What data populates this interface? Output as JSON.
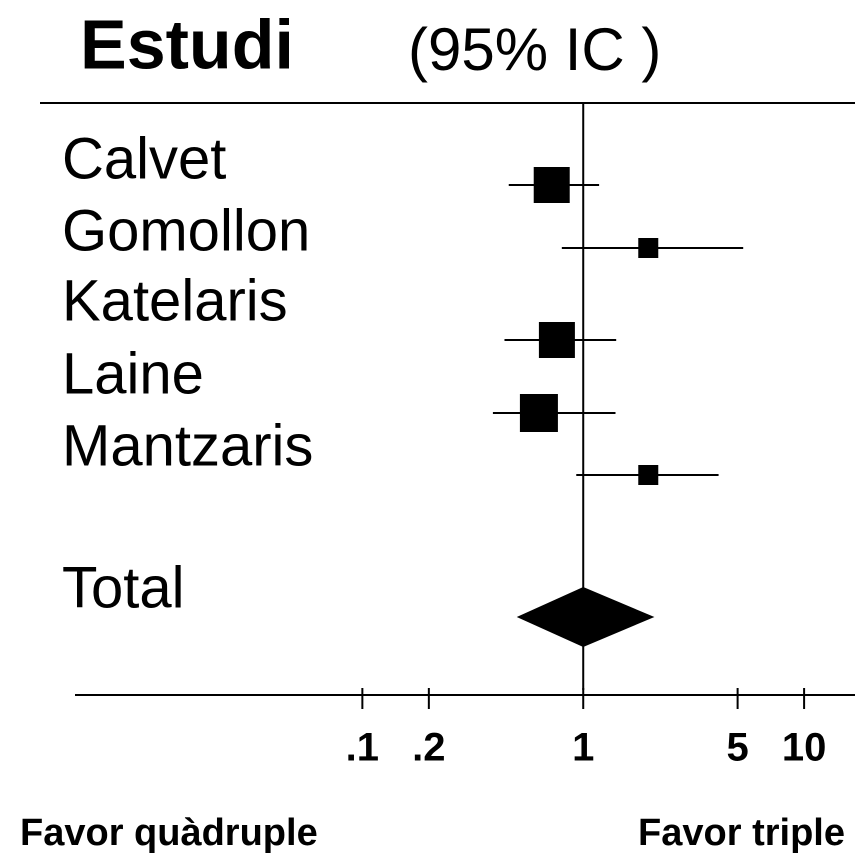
{
  "chart_data": {
    "type": "forest",
    "title": "Estudi",
    "subtitle": "(95% IC )",
    "categories": [
      "Calvet",
      "Gomollon",
      "Katelaris",
      "Laine",
      "Mantzaris"
    ],
    "estimates": [
      0.72,
      1.97,
      0.76,
      0.63,
      1.97
    ],
    "lower": [
      0.46,
      0.8,
      0.44,
      0.39,
      0.93
    ],
    "upper": [
      1.18,
      5.3,
      1.41,
      1.4,
      4.1
    ],
    "weights": [
      36,
      20,
      36,
      38,
      20
    ],
    "total": {
      "label": "Total",
      "estimate": 1.0,
      "lower": 0.5,
      "upper": 2.1
    },
    "xscale": "log",
    "xlim": [
      0.005,
      17
    ],
    "xticks": [
      {
        "value": 0.1,
        "label": ".1"
      },
      {
        "value": 0.2,
        "label": ".2"
      },
      1,
      5,
      10
    ],
    "left_label": "Favor quàdruple",
    "right_label": "Favor triple",
    "color": "#000000"
  }
}
